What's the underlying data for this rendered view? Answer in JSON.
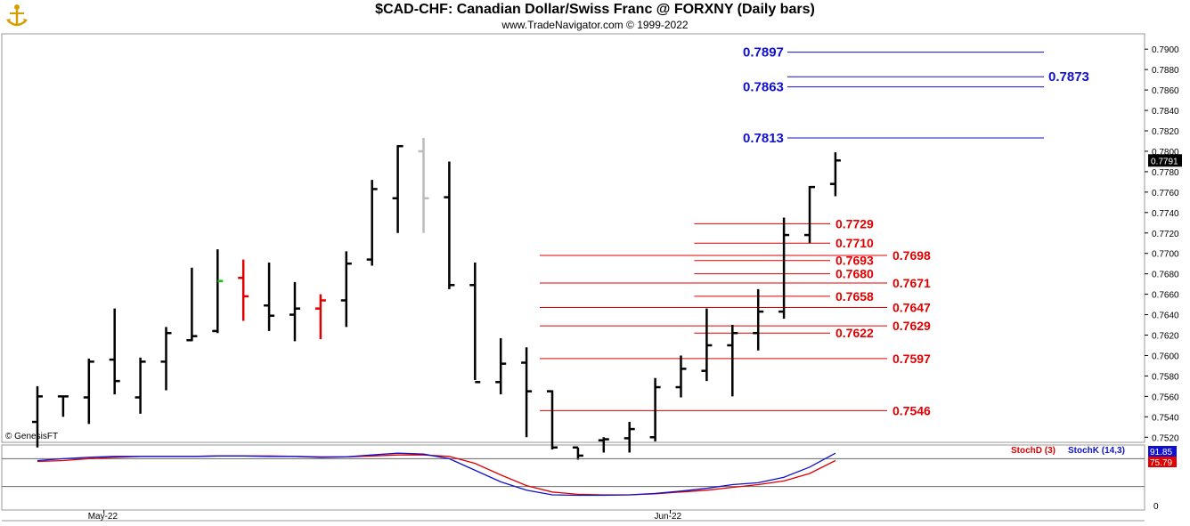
{
  "header": {
    "title": "$CAD-CHF:  Canadian Dollar/Swiss Franc @ FORXNY  (Daily bars)",
    "subtitle": "www.TradeNavigator.com © 1999-2022"
  },
  "copyright": "© GenesisFT",
  "colors": {
    "bar": "#000000",
    "up_bar": "#000000",
    "red_bar": "#e00000",
    "gray_bar": "#bbbbbb",
    "fib_red": "#e00000",
    "target_blue": "#1010d0",
    "stochK": "#1010d0",
    "stochD": "#e00000",
    "current_price_bg": "#000000"
  },
  "chart_data": {
    "type": "bar",
    "price_axis": {
      "ylim": [
        0.7515,
        0.7915
      ],
      "tick_labels": [
        "0.7900",
        "0.7880",
        "0.7860",
        "0.7840",
        "0.7820",
        "0.7800",
        "0.7780",
        "0.7760",
        "0.7740",
        "0.7720",
        "0.7700",
        "0.7680",
        "0.7660",
        "0.7640",
        "0.7620",
        "0.7600",
        "0.7580",
        "0.7560",
        "0.7540",
        "0.7520"
      ],
      "ticks": [
        0.79,
        0.788,
        0.786,
        0.784,
        0.782,
        0.78,
        0.778,
        0.776,
        0.774,
        0.772,
        0.77,
        0.768,
        0.766,
        0.764,
        0.762,
        0.76,
        0.758,
        0.756,
        0.754,
        0.752
      ]
    },
    "current_price": {
      "value": 0.7791,
      "label": "0.7791"
    },
    "x_labels": [
      {
        "label": "May-22",
        "index": 3
      },
      {
        "label": "Jun-22",
        "index": 25
      }
    ],
    "ohlc": [
      {
        "o": 0.7535,
        "h": 0.757,
        "l": 0.751,
        "c": 0.756,
        "color": "black"
      },
      {
        "o": 0.756,
        "h": 0.756,
        "l": 0.754,
        "c": 0.756,
        "color": "black"
      },
      {
        "o": 0.7559,
        "h": 0.7597,
        "l": 0.7533,
        "c": 0.7594,
        "color": "black"
      },
      {
        "o": 0.7596,
        "h": 0.7646,
        "l": 0.7562,
        "c": 0.7575,
        "color": "black"
      },
      {
        "o": 0.7559,
        "h": 0.7598,
        "l": 0.7543,
        "c": 0.7594,
        "color": "black"
      },
      {
        "o": 0.7594,
        "h": 0.7628,
        "l": 0.7566,
        "c": 0.7622,
        "color": "black"
      },
      {
        "o": 0.7615,
        "h": 0.7686,
        "l": 0.7614,
        "c": 0.7619,
        "color": "black"
      },
      {
        "o": 0.7624,
        "h": 0.7704,
        "l": 0.7622,
        "c": 0.7673,
        "color": "black",
        "close_color": "green"
      },
      {
        "o": 0.7676,
        "h": 0.7694,
        "l": 0.7634,
        "c": 0.7658,
        "color": "red"
      },
      {
        "o": 0.7649,
        "h": 0.7691,
        "l": 0.7624,
        "c": 0.7639,
        "color": "black"
      },
      {
        "o": 0.764,
        "h": 0.7672,
        "l": 0.7614,
        "c": 0.7646,
        "color": "black"
      },
      {
        "o": 0.7646,
        "h": 0.766,
        "l": 0.7616,
        "c": 0.7654,
        "color": "red"
      },
      {
        "o": 0.7654,
        "h": 0.7702,
        "l": 0.7628,
        "c": 0.769,
        "color": "black"
      },
      {
        "o": 0.7694,
        "h": 0.7772,
        "l": 0.7688,
        "c": 0.7763,
        "color": "black"
      },
      {
        "o": 0.7754,
        "h": 0.7806,
        "l": 0.772,
        "c": 0.7805,
        "color": "black"
      },
      {
        "o": 0.78,
        "h": 0.7813,
        "l": 0.772,
        "c": 0.7754,
        "color": "gray"
      },
      {
        "o": 0.7755,
        "h": 0.779,
        "l": 0.7665,
        "c": 0.7669,
        "color": "black"
      },
      {
        "o": 0.7669,
        "h": 0.7691,
        "l": 0.7576,
        "c": 0.7574,
        "color": "black"
      },
      {
        "o": 0.7574,
        "h": 0.7617,
        "l": 0.7562,
        "c": 0.7592,
        "color": "black"
      },
      {
        "o": 0.7593,
        "h": 0.7608,
        "l": 0.752,
        "c": 0.7565,
        "color": "black"
      },
      {
        "o": 0.7565,
        "h": 0.7566,
        "l": 0.7508,
        "c": 0.751,
        "color": "black"
      },
      {
        "o": 0.751,
        "h": 0.751,
        "l": 0.7498,
        "c": 0.7502,
        "color": "black"
      },
      {
        "o": 0.7517,
        "h": 0.752,
        "l": 0.7505,
        "c": 0.7518,
        "color": "black"
      },
      {
        "o": 0.7519,
        "h": 0.7535,
        "l": 0.7505,
        "c": 0.7528,
        "color": "black"
      },
      {
        "o": 0.752,
        "h": 0.7578,
        "l": 0.7516,
        "c": 0.7569,
        "color": "black"
      },
      {
        "o": 0.7569,
        "h": 0.76,
        "l": 0.7559,
        "c": 0.7587,
        "color": "black"
      },
      {
        "o": 0.7585,
        "h": 0.7646,
        "l": 0.7575,
        "c": 0.761,
        "color": "black"
      },
      {
        "o": 0.761,
        "h": 0.763,
        "l": 0.756,
        "c": 0.7622,
        "color": "black"
      },
      {
        "o": 0.7622,
        "h": 0.7665,
        "l": 0.7605,
        "c": 0.7643,
        "color": "black"
      },
      {
        "o": 0.7643,
        "h": 0.7735,
        "l": 0.7636,
        "c": 0.7718,
        "color": "black"
      },
      {
        "o": 0.7718,
        "h": 0.7766,
        "l": 0.771,
        "c": 0.7765,
        "color": "black"
      },
      {
        "o": 0.7768,
        "h": 0.7799,
        "l": 0.7756,
        "c": 0.7791,
        "color": "black"
      }
    ],
    "fib_levels": [
      {
        "value": 0.7729,
        "label": "0.7729",
        "start_index": 26
      },
      {
        "value": 0.771,
        "label": "0.7710",
        "start_index": 26
      },
      {
        "value": 0.7698,
        "label": "0.7698",
        "start_index": 20,
        "label_side": "far"
      },
      {
        "value": 0.7693,
        "label": "0.7693",
        "start_index": 26
      },
      {
        "value": 0.768,
        "label": "0.7680",
        "start_index": 26
      },
      {
        "value": 0.7671,
        "label": "0.7671",
        "start_index": 20,
        "label_side": "far"
      },
      {
        "value": 0.7658,
        "label": "0.7658",
        "start_index": 26
      },
      {
        "value": 0.7647,
        "label": "0.7647",
        "start_index": 20,
        "label_side": "far"
      },
      {
        "value": 0.7629,
        "label": "0.7629",
        "start_index": 20,
        "label_side": "far"
      },
      {
        "value": 0.7622,
        "label": "0.7622",
        "start_index": 26
      },
      {
        "value": 0.7597,
        "label": "0.7597",
        "start_index": 20,
        "label_side": "far"
      },
      {
        "value": 0.7546,
        "label": "0.7546",
        "start_index": 20,
        "label_side": "far"
      }
    ],
    "targets": [
      {
        "value": 0.7897,
        "label": "0.7897",
        "label_side": "left"
      },
      {
        "value": 0.7873,
        "label": "0.7873",
        "label_side": "right"
      },
      {
        "value": 0.7863,
        "label": "0.7863",
        "label_side": "left"
      },
      {
        "value": 0.7813,
        "label": "0.7813",
        "label_side": "left"
      }
    ],
    "stochastic": {
      "ylim": [
        0,
        100
      ],
      "zero_label": "0",
      "legend": [
        {
          "name": "StochD (3)",
          "color": "#e00000"
        },
        {
          "name": "StochK (14,3)",
          "color": "#1010d0"
        }
      ],
      "k_label": "91.85",
      "d_label": "75.79",
      "k": [
        76,
        80,
        83,
        85,
        85,
        85,
        85,
        86,
        86,
        85,
        85,
        83,
        84,
        88,
        92,
        90,
        80,
        55,
        30,
        12,
        2,
        1,
        1,
        2,
        5,
        10,
        16,
        24,
        28,
        40,
        62,
        92
      ],
      "d": [
        74,
        76,
        80,
        83,
        85,
        85,
        85,
        86,
        86,
        86,
        85,
        84,
        84,
        86,
        88,
        88,
        85,
        70,
        45,
        22,
        8,
        3,
        2,
        2,
        4,
        8,
        12,
        18,
        24,
        32,
        48,
        76
      ]
    }
  }
}
